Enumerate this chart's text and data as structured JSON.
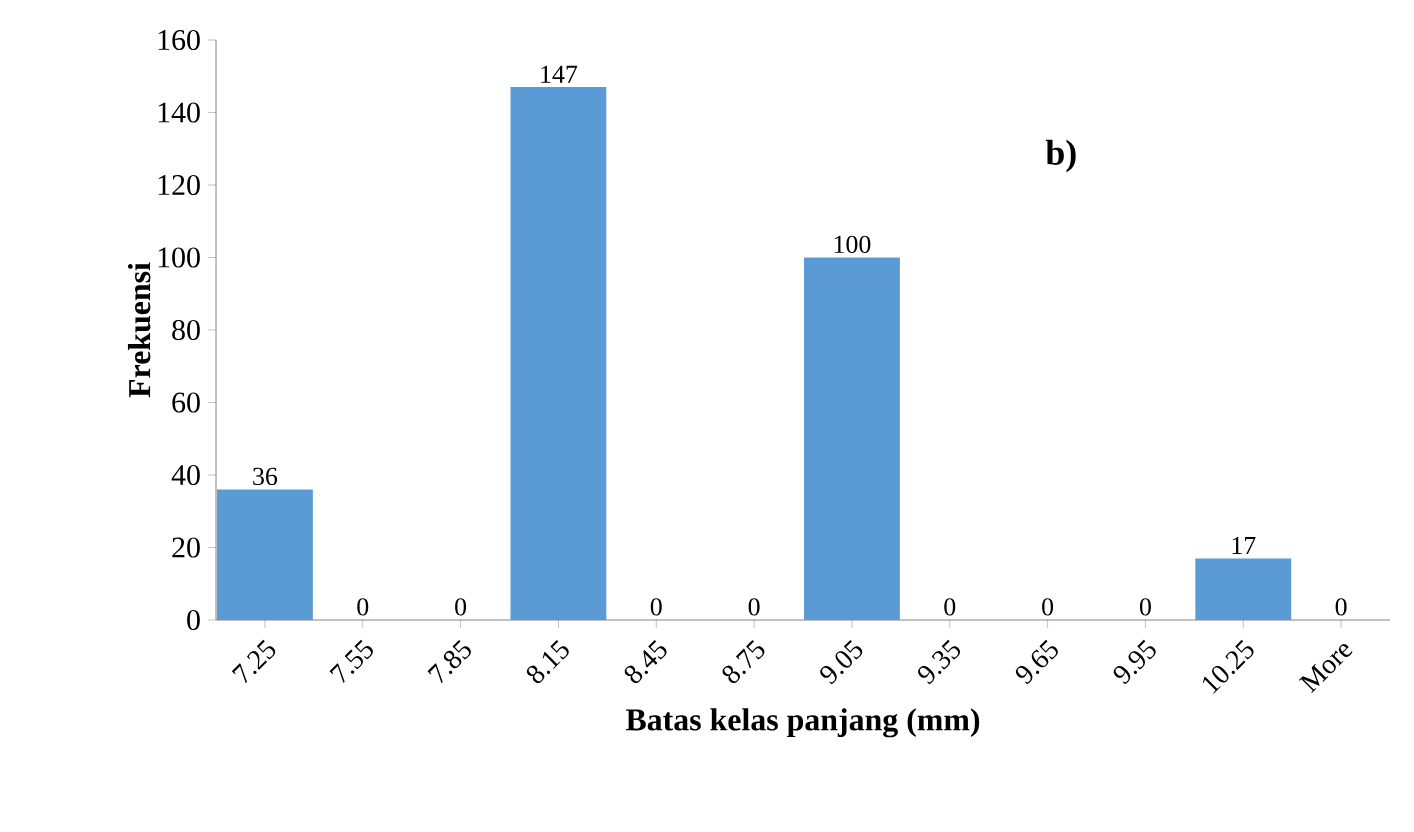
{
  "chart_data": {
    "type": "bar",
    "xlabel": "Batas kelas panjang (mm)",
    "ylabel": "Frekuensi",
    "categories": [
      "7.25",
      "7.55",
      "7.85",
      "8.15",
      "8.45",
      "8.75",
      "9.05",
      "9.35",
      "9.65",
      "9.95",
      "10.25",
      "More"
    ],
    "values": [
      36,
      0,
      0,
      147,
      0,
      0,
      100,
      0,
      0,
      0,
      17,
      0
    ],
    "color": "#5b9bd5",
    "ylim": [
      0,
      160
    ],
    "yticks": [
      0,
      20,
      40,
      60,
      80,
      100,
      120,
      140,
      160
    ],
    "data_labels": true,
    "annotations": [
      "b)"
    ]
  }
}
